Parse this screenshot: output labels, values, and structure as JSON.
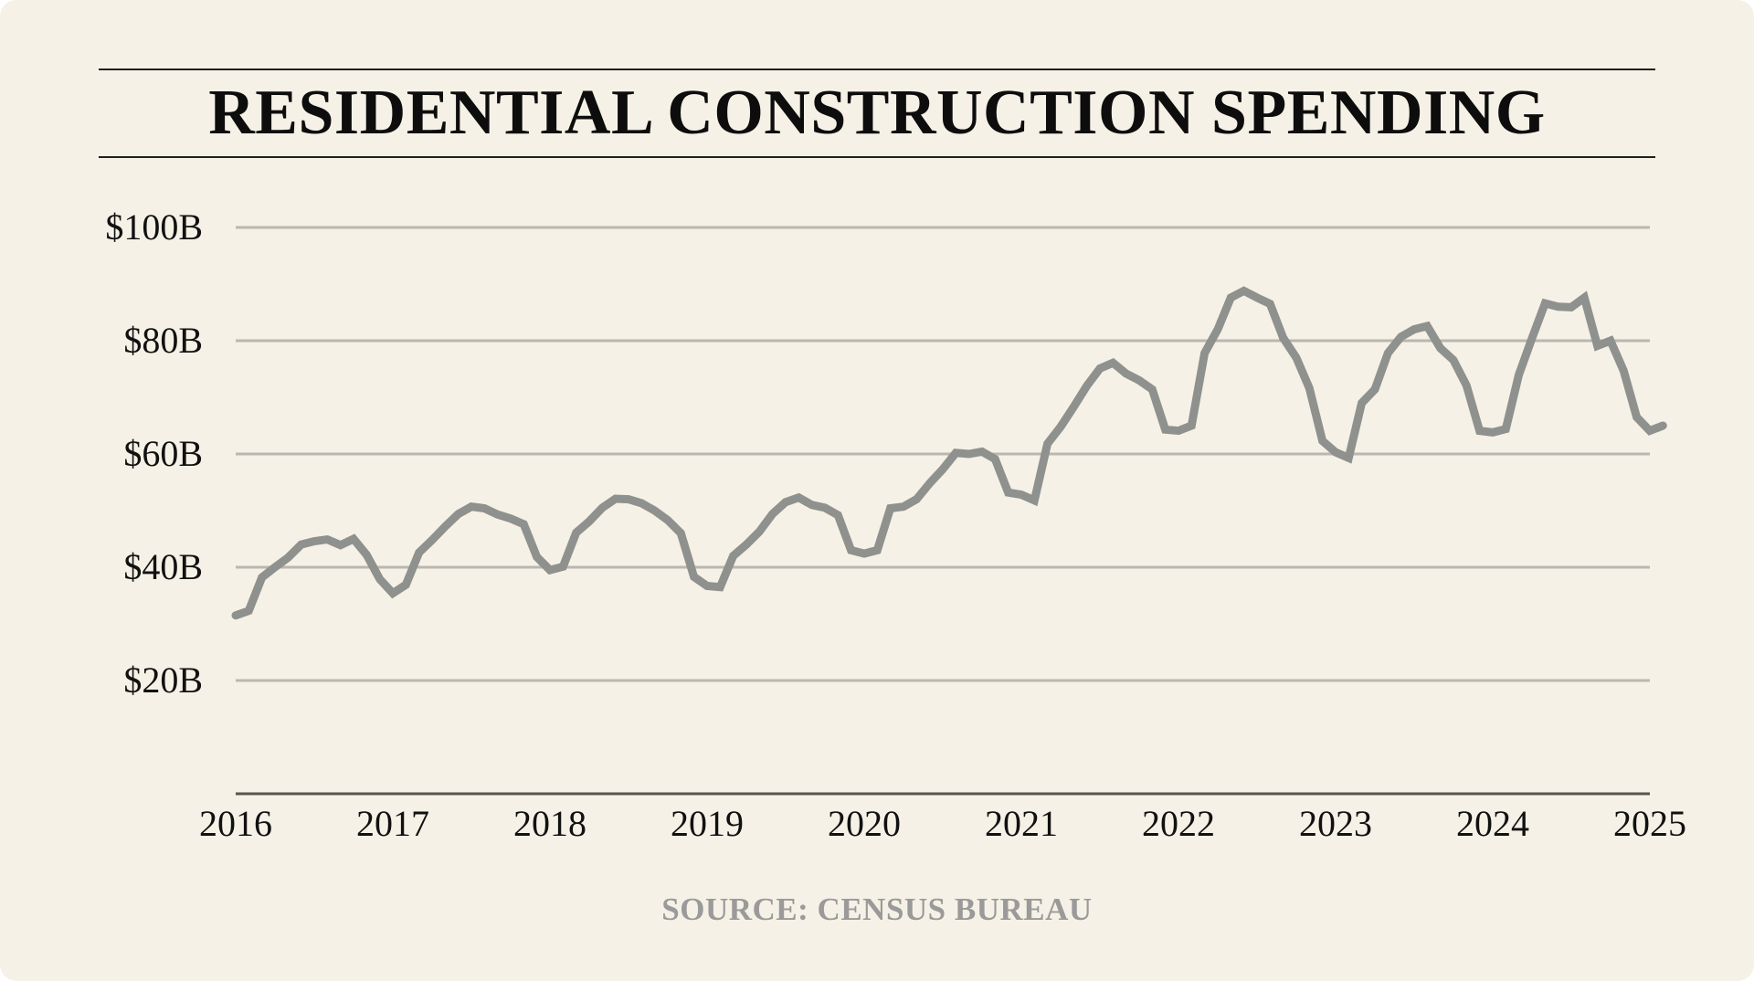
{
  "colors": {
    "background": "#f6f1e6",
    "line": "#8f918e",
    "gridline": "#b9b8b0",
    "axis": "#55554f",
    "title": "#0d0d0d",
    "source": "#9a9a9a"
  },
  "header": {
    "title": "RESIDENTIAL CONSTRUCTION SPENDING"
  },
  "footer": {
    "source": "SOURCE: CENSUS BUREAU"
  },
  "chart_data": {
    "type": "line",
    "title": "RESIDENTIAL CONSTRUCTION SPENDING",
    "xlabel": "",
    "ylabel": "",
    "xlim": [
      2016,
      2025
    ],
    "ylim": [
      0,
      100
    ],
    "grid": true,
    "legend": "none",
    "y_ticks": [
      {
        "value": 20,
        "label": "$20B"
      },
      {
        "value": 40,
        "label": "$40B"
      },
      {
        "value": 60,
        "label": "$60B"
      },
      {
        "value": 80,
        "label": "$80B"
      },
      {
        "value": 100,
        "label": "$100B"
      }
    ],
    "x_ticks": [
      {
        "value": 2016,
        "label": "2016"
      },
      {
        "value": 2017,
        "label": "2017"
      },
      {
        "value": 2018,
        "label": "2018"
      },
      {
        "value": 2019,
        "label": "2019"
      },
      {
        "value": 2020,
        "label": "2020"
      },
      {
        "value": 2021,
        "label": "2021"
      },
      {
        "value": 2022,
        "label": "2022"
      },
      {
        "value": 2023,
        "label": "2023"
      },
      {
        "value": 2024,
        "label": "2024"
      },
      {
        "value": 2025,
        "label": "2025"
      }
    ],
    "series": [
      {
        "name": "Residential construction spending",
        "x_start": 2016,
        "x_step": 0.08333,
        "values": [
          31.5,
          32.3,
          38.2,
          40.0,
          41.7,
          44.0,
          44.6,
          44.9,
          43.9,
          45.0,
          42.2,
          37.9,
          35.4,
          36.9,
          42.6,
          44.8,
          47.2,
          49.4,
          50.7,
          50.4,
          49.3,
          48.6,
          47.6,
          41.8,
          39.5,
          40.1,
          46.1,
          48.1,
          50.5,
          52.1,
          52.0,
          51.3,
          50.0,
          48.3,
          46.0,
          38.3,
          36.7,
          36.5,
          42.0,
          44.0,
          46.3,
          49.4,
          51.5,
          52.3,
          51.0,
          50.5,
          49.2,
          43.0,
          42.4,
          43.0,
          50.4,
          50.7,
          52.0,
          54.8,
          57.3,
          60.2,
          60.0,
          60.4,
          59.1,
          53.2,
          52.8,
          51.8,
          61.8,
          64.8,
          68.3,
          72.0,
          75.1,
          76.1,
          74.2,
          73.0,
          71.4,
          64.3,
          64.1,
          65.0,
          77.8,
          82.0,
          87.6,
          88.8,
          87.6,
          86.5,
          80.5,
          77.0,
          71.6,
          62.3,
          60.3,
          59.3,
          69.0,
          71.4,
          77.8,
          80.7,
          82.0,
          82.6,
          78.7,
          76.6,
          72.1,
          64.1,
          63.8,
          64.4,
          74.0,
          80.4,
          86.6,
          86.0,
          85.9,
          87.6,
          79.1,
          80.0,
          74.7,
          66.5,
          64.1,
          65.0
        ]
      }
    ]
  }
}
